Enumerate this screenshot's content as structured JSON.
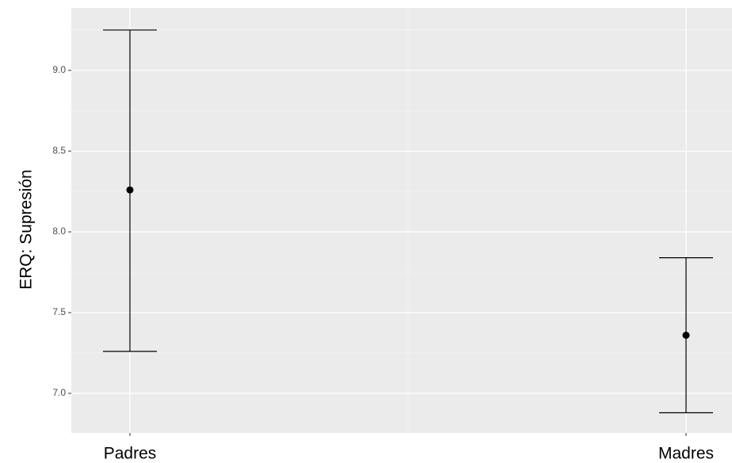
{
  "chart_data": {
    "type": "errorbar",
    "y_label": "ERQ: Supresión",
    "categories": [
      "Padres",
      "Madres"
    ],
    "values": [
      8.26,
      7.36
    ],
    "lower": [
      7.26,
      6.88
    ],
    "upper": [
      9.25,
      7.84
    ],
    "color": "#000000",
    "ylim": [
      6.755,
      9.387
    ],
    "yticks": [
      {
        "value": 7,
        "label": "7.0"
      },
      7.5,
      {
        "value": 8,
        "label": "8.0"
      },
      8.5,
      {
        "value": 9,
        "label": "9.0"
      }
    ],
    "grid": true
  }
}
